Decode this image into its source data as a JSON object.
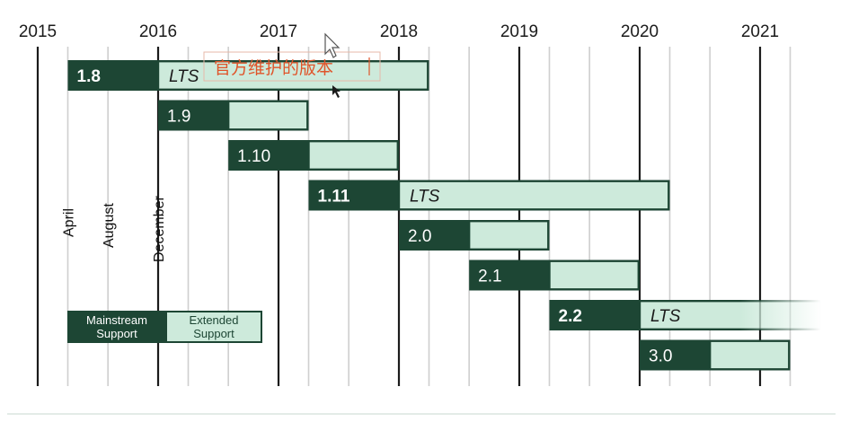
{
  "chart_data": {
    "type": "bar",
    "years": [
      "2015",
      "2016",
      "2017",
      "2018",
      "2019",
      "2020",
      "2021"
    ],
    "month_labels": [
      "April",
      "August",
      "December"
    ],
    "xlim": [
      "2015-01",
      "2021-07"
    ],
    "grid": true,
    "series": [
      {
        "name": "Mainstream Support"
      },
      {
        "name": "Extended Support"
      }
    ],
    "releases": [
      {
        "version": "1.8",
        "bold": true,
        "lts": "LTS",
        "mainstream": [
          "2015-04",
          "2016-01"
        ],
        "extended": [
          "2016-01",
          "2018-04"
        ]
      },
      {
        "version": "1.9",
        "bold": false,
        "lts": "",
        "mainstream": [
          "2016-01",
          "2016-08"
        ],
        "extended": [
          "2016-08",
          "2017-04"
        ]
      },
      {
        "version": "1.10",
        "bold": false,
        "lts": "",
        "mainstream": [
          "2016-08",
          "2017-04"
        ],
        "extended": [
          "2017-04",
          "2018-01"
        ]
      },
      {
        "version": "1.11",
        "bold": true,
        "lts": "LTS",
        "mainstream": [
          "2017-04",
          "2018-01"
        ],
        "extended": [
          "2018-01",
          "2020-04"
        ]
      },
      {
        "version": "2.0",
        "bold": false,
        "lts": "",
        "mainstream": [
          "2018-01",
          "2018-08"
        ],
        "extended": [
          "2018-08",
          "2019-04"
        ]
      },
      {
        "version": "2.1",
        "bold": false,
        "lts": "",
        "mainstream": [
          "2018-08",
          "2019-04"
        ],
        "extended": [
          "2019-04",
          "2020-01"
        ]
      },
      {
        "version": "2.2",
        "bold": true,
        "lts": "LTS",
        "mainstream": [
          "2019-04",
          "2020-01"
        ],
        "extended": [
          "2020-01",
          "2022-04"
        ],
        "fades_out": true
      },
      {
        "version": "3.0",
        "bold": false,
        "lts": "",
        "mainstream": [
          "2020-01",
          "2020-08"
        ],
        "extended": [
          "2020-08",
          "2021-04"
        ]
      }
    ],
    "legend": {
      "mainstream": [
        "Mainstream",
        "Support"
      ],
      "extended": [
        "Extended",
        "Support"
      ],
      "placement": "bottom-left"
    }
  },
  "annotation": {
    "text": "官方维护的版本"
  },
  "colors": {
    "mainstream": "#1d4634",
    "extended": "#cdeadb",
    "border": "#1d4634",
    "year_line": "#1b1b1b",
    "minor_line": "#cfcfcf",
    "annotation": "#e0542a"
  }
}
